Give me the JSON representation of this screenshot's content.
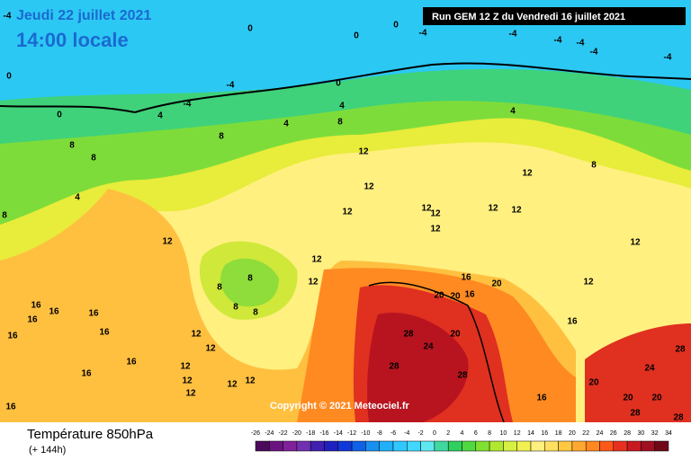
{
  "header": {
    "date": "Jeudi 22 juillet 2021",
    "time": "14:00 locale",
    "run": "Run GEM 12 Z du Vendredi 16 juillet 2021"
  },
  "copyright": "Copyright © 2021 Meteociel.fr",
  "footer": {
    "title": "Température 850hPa",
    "subtitle": "(+ 144h)"
  },
  "map": {
    "labels": [
      "-4",
      "0",
      "0",
      "0",
      "-4",
      "-4",
      "-4",
      "-4",
      "-4",
      "-4",
      "0",
      "-4",
      "-4",
      "0",
      "4",
      "4",
      "4",
      "8",
      "0",
      "8",
      "8",
      "8",
      "4",
      "12",
      "12",
      "8",
      "4",
      "8",
      "12",
      "12",
      "12",
      "12",
      "12",
      "12",
      "12",
      "12",
      "12",
      "12",
      "8",
      "8",
      "8",
      "8",
      "12",
      "16",
      "20",
      "20",
      "16",
      "20",
      "12",
      "16",
      "16",
      "16",
      "16",
      "16",
      "16",
      "16",
      "16",
      "12",
      "12",
      "12",
      "12",
      "12",
      "12",
      "12",
      "28",
      "24",
      "20",
      "16",
      "28",
      "28",
      "16",
      "20",
      "24",
      "28",
      "20",
      "20",
      "16",
      "28",
      "28"
    ]
  },
  "scale": {
    "values": [
      -26,
      -24,
      -22,
      -20,
      -18,
      -16,
      -14,
      -12,
      -10,
      -8,
      -6,
      -4,
      -2,
      0,
      2,
      4,
      6,
      8,
      10,
      12,
      14,
      16,
      18,
      20,
      22,
      24,
      26,
      28,
      30,
      32,
      34
    ],
    "colors": [
      "#4b0a5a",
      "#6a1480",
      "#80209a",
      "#7030b0",
      "#4020b0",
      "#2020c0",
      "#1038d8",
      "#1060e8",
      "#1890f0",
      "#20b0f8",
      "#30c8ff",
      "#40d8ff",
      "#60e8f0",
      "#40d8a0",
      "#30d060",
      "#50d840",
      "#80e030",
      "#b0e830",
      "#d8f040",
      "#f0f050",
      "#fff080",
      "#ffe060",
      "#ffc840",
      "#ffa830",
      "#ff8820",
      "#ff5818",
      "#e83020",
      "#c81820",
      "#a01020",
      "#700818"
    ]
  }
}
